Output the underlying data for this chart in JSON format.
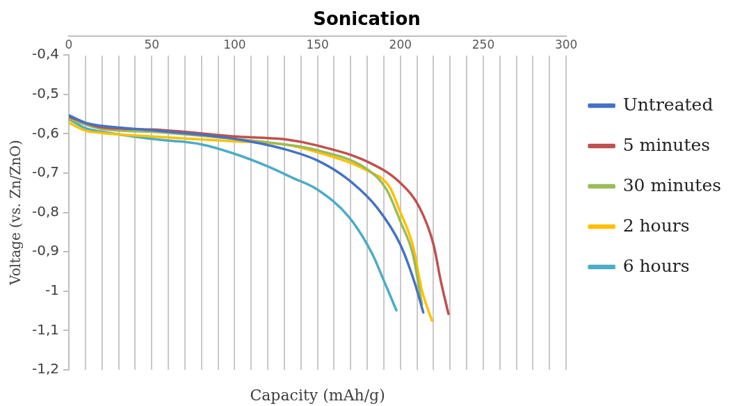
{
  "chart_data": {
    "type": "line",
    "title": "Sonication",
    "xlabel": "Capacity (mAh/g)",
    "ylabel": "Voltage (vs. Zn/ZnO)",
    "xlim": [
      0,
      300
    ],
    "ylim": [
      -1.2,
      -0.4
    ],
    "xticks": [
      0,
      {
        "value": 10,
        "label": null
      },
      {
        "value": 20,
        "label": null
      },
      {
        "value": 30,
        "label": null
      },
      {
        "value": 40,
        "label": null
      },
      50,
      {
        "value": 60,
        "label": null
      },
      {
        "value": 70,
        "label": null
      },
      {
        "value": 80,
        "label": null
      },
      {
        "value": 90,
        "label": null
      },
      100,
      {
        "value": 110,
        "label": null
      },
      {
        "value": 120,
        "label": null
      },
      {
        "value": 130,
        "label": null
      },
      {
        "value": 140,
        "label": null
      },
      150,
      {
        "value": 160,
        "label": null
      },
      {
        "value": 170,
        "label": null
      },
      {
        "value": 180,
        "label": null
      },
      {
        "value": 190,
        "label": null
      },
      200,
      {
        "value": 210,
        "label": null
      },
      {
        "value": 220,
        "label": null
      },
      {
        "value": 230,
        "label": null
      },
      {
        "value": 240,
        "label": null
      },
      250,
      {
        "value": 260,
        "label": null
      },
      {
        "value": 270,
        "label": null
      },
      {
        "value": 280,
        "label": null
      },
      {
        "value": 290,
        "label": null
      },
      300
    ],
    "yticks": [
      {
        "value": -0.4,
        "label": "-0,4"
      },
      {
        "value": -0.5,
        "label": "-0,5"
      },
      {
        "value": -0.6,
        "label": "-0,6"
      },
      {
        "value": -0.7,
        "label": "-0,7"
      },
      {
        "value": -0.8,
        "label": "-0,8"
      },
      {
        "value": -0.9,
        "label": "-0,9"
      },
      {
        "value": -1,
        "label": "-1"
      },
      {
        "value": -1.1,
        "label": "-1,1"
      },
      {
        "value": -1.2,
        "label": "-1,2"
      }
    ],
    "grid": "x",
    "legend": "right",
    "marker": "none",
    "line_style": "solid",
    "series": [
      {
        "name": "Untreated",
        "color": "#4472c4",
        "x": [
          0,
          10,
          20,
          50,
          100,
          130,
          150,
          169,
          186,
          200,
          208.7,
          213.8
        ],
        "values": [
          -0.553,
          -0.572,
          -0.58,
          -0.591,
          -0.613,
          -0.639,
          -0.668,
          -0.718,
          -0.788,
          -0.882,
          -0.98,
          -1.054
        ]
      },
      {
        "name": "5 minutes",
        "color": "#c0504d",
        "x": [
          0,
          20,
          50,
          100,
          130,
          150,
          180.6,
          200,
          211.6,
          220,
          224.4,
          229
        ],
        "values": [
          -0.557,
          -0.584,
          -0.589,
          -0.607,
          -0.614,
          -0.63,
          -0.672,
          -0.725,
          -0.788,
          -0.882,
          -0.975,
          -1.058
        ]
      },
      {
        "name": "30 minutes",
        "color": "#9bbb59",
        "x": [
          0,
          20,
          50,
          100,
          130,
          150,
          180.6,
          191.7,
          200,
          207.4,
          213
        ],
        "values": [
          -0.563,
          -0.588,
          -0.595,
          -0.613,
          -0.627,
          -0.642,
          -0.692,
          -0.742,
          -0.823,
          -0.905,
          -1.033
        ]
      },
      {
        "name": "2 hours",
        "color": "#ffc000",
        "x": [
          0,
          10,
          20,
          50,
          100,
          130,
          150,
          180.6,
          193.4,
          200,
          207.4,
          213,
          219
        ],
        "values": [
          -0.572,
          -0.592,
          -0.598,
          -0.607,
          -0.619,
          -0.627,
          -0.647,
          -0.695,
          -0.735,
          -0.8,
          -0.882,
          -0.998,
          -1.075
        ]
      },
      {
        "name": "6 hours",
        "color": "#4bacc6",
        "x": [
          0,
          10,
          20,
          50,
          80,
          100,
          120,
          135,
          150,
          169,
          183,
          189,
          197.6
        ],
        "values": [
          -0.563,
          -0.586,
          -0.595,
          -0.613,
          -0.627,
          -0.651,
          -0.683,
          -0.712,
          -0.742,
          -0.812,
          -0.905,
          -0.963,
          -1.049
        ]
      }
    ]
  }
}
